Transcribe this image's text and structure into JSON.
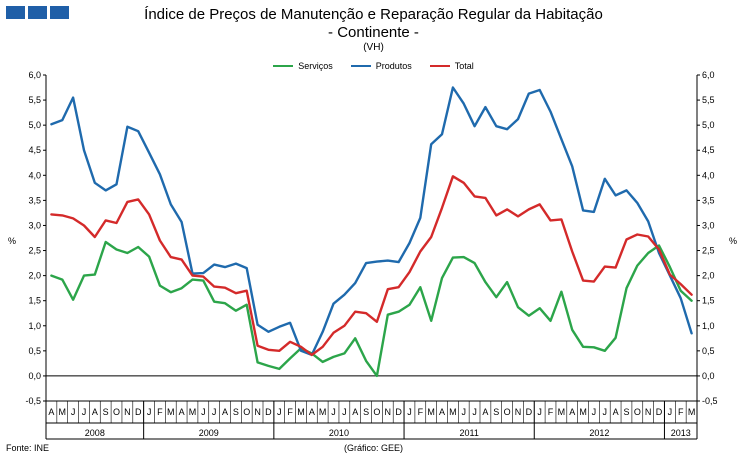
{
  "header": {
    "title_line1": "Índice de Preços de Manutenção e Reparação Regular da Habitação",
    "title_line2": "- Continente -",
    "subtitle": "(VH)"
  },
  "footer": {
    "source": "Fonte: INE",
    "credit": "(Gráfico: GEE)"
  },
  "chart_data": {
    "type": "line",
    "ylabel": "%",
    "ylim": [
      -0.5,
      6.0
    ],
    "yticks": [
      "6,0",
      "5,5",
      "5,0",
      "4,5",
      "4,0",
      "3,5",
      "3,0",
      "2,5",
      "2,0",
      "1,5",
      "1,0",
      "0,5",
      "0,0",
      "-0,5"
    ],
    "grid": "none",
    "legend_position": "top-center",
    "x": [
      "A",
      "M",
      "J",
      "J",
      "A",
      "S",
      "O",
      "N",
      "D",
      "J",
      "F",
      "M",
      "A",
      "M",
      "J",
      "J",
      "A",
      "S",
      "O",
      "N",
      "D",
      "J",
      "F",
      "M",
      "A",
      "M",
      "J",
      "J",
      "A",
      "S",
      "O",
      "N",
      "D",
      "J",
      "F",
      "M",
      "A",
      "M",
      "J",
      "J",
      "A",
      "S",
      "O",
      "N",
      "D",
      "J",
      "F",
      "M",
      "A",
      "M",
      "J",
      "J",
      "A",
      "S",
      "O",
      "N",
      "D",
      "J",
      "F",
      "M"
    ],
    "years": [
      {
        "label": "2008",
        "start": 0,
        "end": 9
      },
      {
        "label": "2009",
        "start": 9,
        "end": 21
      },
      {
        "label": "2010",
        "start": 21,
        "end": 33
      },
      {
        "label": "2011",
        "start": 33,
        "end": 45
      },
      {
        "label": "2012",
        "start": 45,
        "end": 57
      },
      {
        "label": "2013",
        "start": 57,
        "end": 60
      }
    ],
    "series": [
      {
        "name": "Serviços",
        "color": "#2ca54a",
        "values": [
          2.0,
          1.92,
          1.52,
          2.0,
          2.02,
          2.67,
          2.52,
          2.45,
          2.57,
          2.38,
          1.8,
          1.67,
          1.75,
          1.92,
          1.9,
          1.48,
          1.45,
          1.3,
          1.42,
          0.27,
          0.2,
          0.14,
          0.35,
          0.55,
          0.45,
          0.28,
          0.38,
          0.45,
          0.75,
          0.3,
          0.0,
          1.22,
          1.28,
          1.42,
          1.77,
          1.1,
          1.95,
          2.36,
          2.37,
          2.25,
          1.87,
          1.57,
          1.87,
          1.37,
          1.2,
          1.35,
          1.1,
          1.68,
          0.92,
          0.58,
          0.57,
          0.5,
          0.76,
          1.75,
          2.2,
          2.45,
          2.6,
          2.17,
          1.7,
          1.5
        ]
      },
      {
        "name": "Produtos",
        "color": "#1f6aad",
        "values": [
          5.02,
          5.1,
          5.55,
          4.5,
          3.85,
          3.7,
          3.82,
          4.97,
          4.88,
          4.45,
          4.02,
          3.42,
          3.07,
          2.04,
          2.05,
          2.22,
          2.17,
          2.24,
          2.15,
          1.02,
          0.88,
          0.98,
          1.06,
          0.5,
          0.42,
          0.88,
          1.44,
          1.62,
          1.85,
          2.25,
          2.28,
          2.3,
          2.27,
          2.65,
          3.15,
          4.62,
          4.82,
          5.75,
          5.43,
          4.98,
          5.36,
          4.98,
          4.92,
          5.12,
          5.63,
          5.7,
          5.27,
          4.72,
          4.18,
          3.3,
          3.27,
          3.93,
          3.6,
          3.7,
          3.45,
          3.08,
          2.45,
          2.0,
          1.55,
          0.85
        ]
      },
      {
        "name": "Total",
        "color": "#d42a2a",
        "values": [
          3.22,
          3.2,
          3.14,
          3.0,
          2.77,
          3.1,
          3.05,
          3.47,
          3.52,
          3.22,
          2.7,
          2.37,
          2.32,
          2.0,
          1.98,
          1.78,
          1.76,
          1.65,
          1.7,
          0.6,
          0.52,
          0.5,
          0.68,
          0.58,
          0.42,
          0.58,
          0.86,
          1.0,
          1.28,
          1.25,
          1.08,
          1.73,
          1.77,
          2.07,
          2.48,
          2.77,
          3.35,
          3.98,
          3.85,
          3.58,
          3.55,
          3.2,
          3.32,
          3.18,
          3.32,
          3.42,
          3.1,
          3.12,
          2.48,
          1.9,
          1.88,
          2.18,
          2.16,
          2.72,
          2.82,
          2.78,
          2.52,
          2.02,
          1.83,
          1.62
        ]
      }
    ]
  }
}
